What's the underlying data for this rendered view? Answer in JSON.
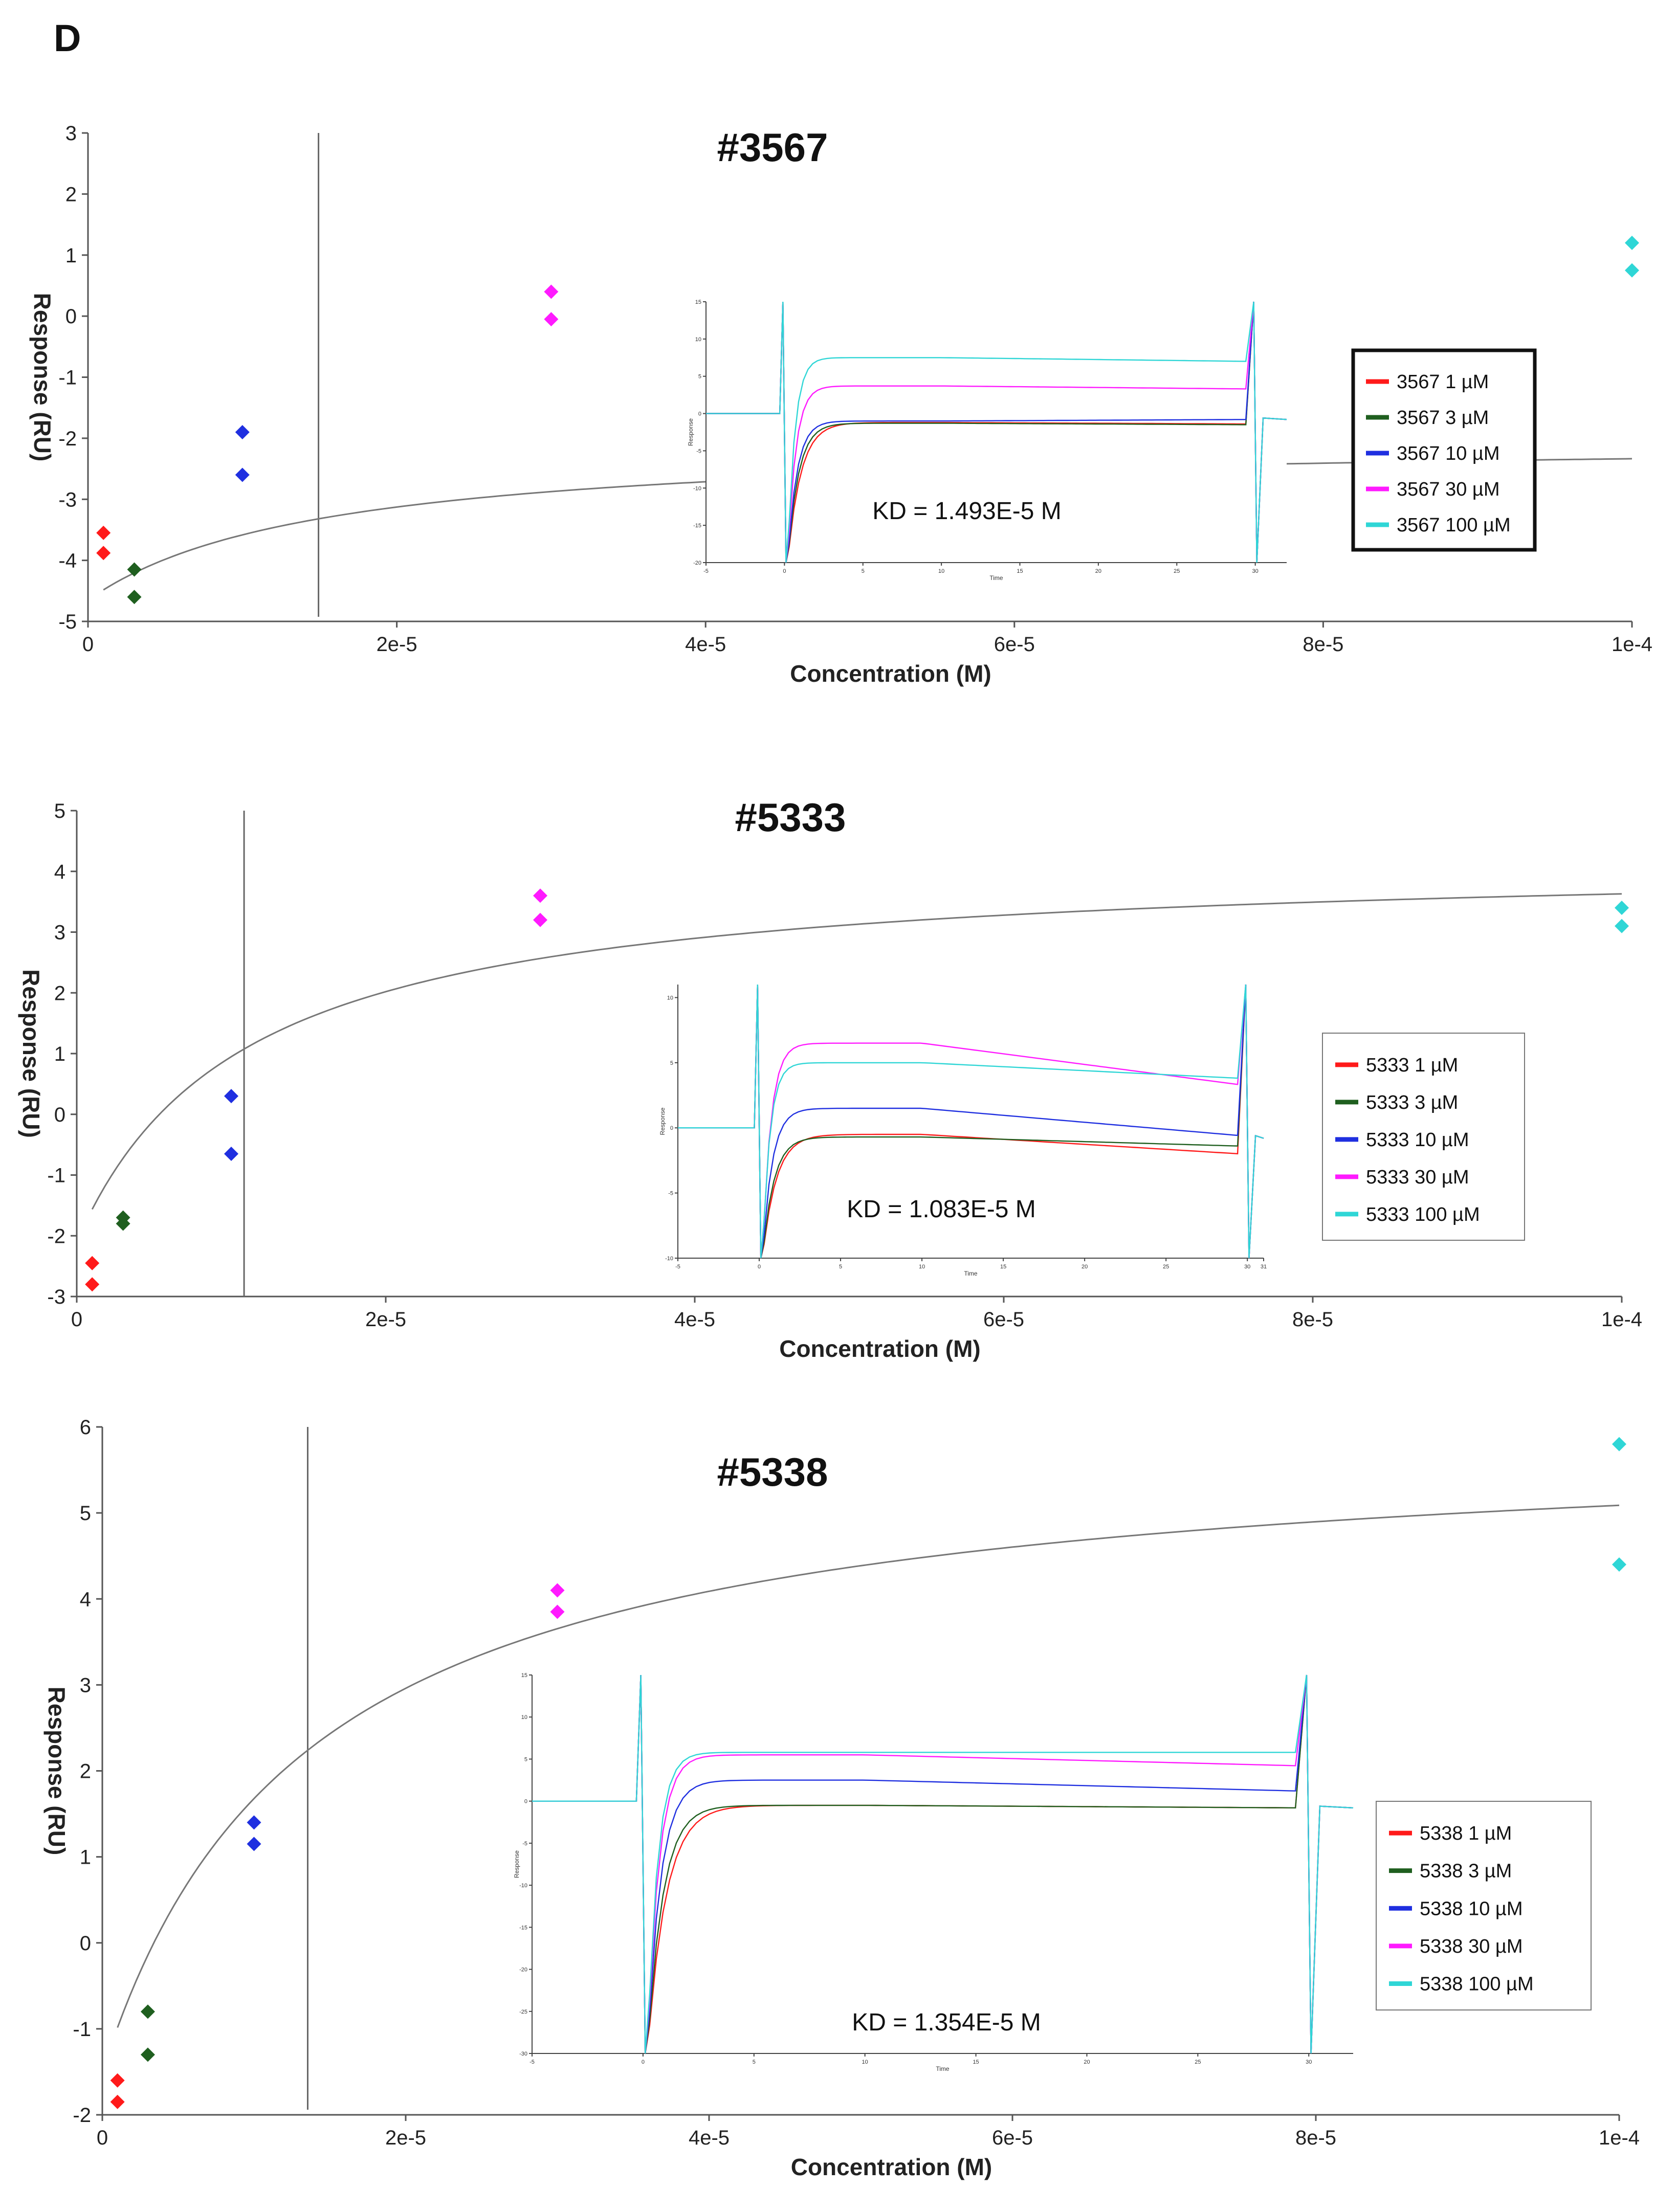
{
  "panel_label": "D",
  "chart_data": [
    {
      "type": "scatter",
      "title": "#3567",
      "xlabel": "Concentration  (M)",
      "ylabel": "Response  (RU)",
      "xlim": [
        0,
        0.0001
      ],
      "ylim": [
        -5,
        3
      ],
      "xticks": [
        0,
        2e-05,
        4e-05,
        6e-05,
        8e-05,
        0.0001
      ],
      "xtick_labels": [
        "0",
        "2e-5",
        "4e-5",
        "6e-5",
        "8e-5",
        "1e-4"
      ],
      "yticks": [
        -5,
        -4,
        -3,
        -2,
        -1,
        0,
        1,
        2,
        3
      ],
      "ytick_labels": [
        "-5",
        "-4",
        "-3",
        "-2",
        "-1",
        "0",
        "1",
        "2",
        "3"
      ],
      "fit": {
        "rmax": 2.66,
        "kd": 1.493e-05,
        "offset": -4.65
      },
      "kd_line_x": 1.493e-05,
      "series": [
        {
          "name": "3567  1 µM",
          "color": "#ff1a1a",
          "x": [
            1e-06,
            1e-06
          ],
          "y": [
            -3.55,
            -3.88
          ]
        },
        {
          "name": "3567  3 µM",
          "color": "#1f5f1f",
          "x": [
            3e-06,
            3e-06
          ],
          "y": [
            -4.15,
            -4.6
          ]
        },
        {
          "name": "3567  10 µM",
          "color": "#1f2fe0",
          "x": [
            1e-05,
            1e-05
          ],
          "y": [
            -1.9,
            -2.6
          ]
        },
        {
          "name": "3567  30 µM",
          "color": "#ff1aff",
          "x": [
            3e-05,
            3e-05
          ],
          "y": [
            0.4,
            -0.05
          ]
        },
        {
          "name": "3567  100 µM",
          "color": "#2fd6d6",
          "x": [
            0.0001,
            0.0001
          ],
          "y": [
            1.2,
            0.75
          ]
        }
      ],
      "legend": {
        "items": [
          "3567  1 µM",
          "3567  3 µM",
          "3567  10 µM",
          "3567  30 µM",
          "3567  100 µM"
        ]
      },
      "inset": {
        "kd_text": "KD = 1.493E-5 M",
        "ylabel": "Response",
        "xlabel": "Time",
        "xlim": [
          -5,
          32
        ],
        "ylim": [
          -20,
          15
        ],
        "xticks": [
          -5,
          0,
          5,
          10,
          15,
          20,
          25,
          30
        ],
        "xtick_labels": [
          "-5",
          "0",
          "5",
          "10",
          "15",
          "20",
          "25",
          "30"
        ],
        "yticks": [
          -20,
          -15,
          -10,
          -5,
          0,
          5,
          10,
          15
        ],
        "ytick_labels": [
          "-20",
          "-15",
          "-10",
          "-5",
          "0",
          "5",
          "10",
          "15"
        ],
        "plateaus": [
          -1.2,
          -1.3,
          -1.0,
          3.7,
          7.5
        ],
        "end_values": [
          -1.4,
          -1.5,
          -0.8,
          3.3,
          7.0
        ]
      }
    },
    {
      "type": "scatter",
      "title": "#5333",
      "xlabel": "Concentration  (M)",
      "ylabel": "Response  (RU)",
      "xlim": [
        0,
        0.0001
      ],
      "ylim": [
        -3,
        5
      ],
      "xticks": [
        0,
        2e-05,
        4e-05,
        6e-05,
        8e-05,
        0.0001
      ],
      "xtick_labels": [
        "0",
        "2e-5",
        "4e-5",
        "6e-5",
        "8e-5",
        "1e-4"
      ],
      "yticks": [
        -3,
        -2,
        -1,
        0,
        1,
        2,
        3,
        4,
        5
      ],
      "ytick_labels": [
        "-3",
        "-2",
        "-1",
        "0",
        "1",
        "2",
        "3",
        "4",
        "5"
      ],
      "fit": {
        "rmax": 6.35,
        "kd": 1.083e-05,
        "offset": -2.1
      },
      "kd_line_x": 1.083e-05,
      "series": [
        {
          "name": "5333  1 µM",
          "color": "#ff1a1a",
          "x": [
            1e-06,
            1e-06
          ],
          "y": [
            -2.45,
            -2.8
          ]
        },
        {
          "name": "5333  3 µM",
          "color": "#1f5f1f",
          "x": [
            3e-06,
            3e-06
          ],
          "y": [
            -1.7,
            -1.8
          ]
        },
        {
          "name": "5333  10 µM",
          "color": "#1f2fe0",
          "x": [
            1e-05,
            1e-05
          ],
          "y": [
            0.3,
            -0.65
          ]
        },
        {
          "name": "5333  30 µM",
          "color": "#ff1aff",
          "x": [
            3e-05,
            3e-05
          ],
          "y": [
            3.6,
            3.2
          ]
        },
        {
          "name": "5333  100 µM",
          "color": "#2fd6d6",
          "x": [
            0.0001,
            0.0001
          ],
          "y": [
            3.4,
            3.1
          ]
        }
      ],
      "legend": {
        "items": [
          "5333  1 µM",
          "5333  3 µM",
          "5333  10 µM",
          "5333  30 µM",
          "5333  100 µM"
        ]
      },
      "inset": {
        "kd_text": "KD = 1.083E-5 M",
        "ylabel": "Response",
        "xlabel": "Time",
        "xlim": [
          -5,
          31
        ],
        "ylim": [
          -10,
          11
        ],
        "xticks": [
          -5,
          0,
          5,
          10,
          15,
          20,
          25,
          30,
          31
        ],
        "xtick_labels": [
          "-5",
          "0",
          "5",
          "10",
          "15",
          "20",
          "25",
          "30",
          "31"
        ],
        "yticks": [
          -10,
          -5,
          0,
          5,
          10
        ],
        "ytick_labels": [
          "-10",
          "-5",
          "0",
          "5",
          "10"
        ],
        "plateaus": [
          -0.5,
          -0.7,
          1.5,
          6.5,
          5.0
        ],
        "end_values": [
          -2.0,
          -1.4,
          -0.6,
          3.3,
          3.8
        ]
      }
    },
    {
      "type": "scatter",
      "title": "#5338",
      "xlabel": "Concentration  (M)",
      "ylabel": "Response  (RU)",
      "xlim": [
        0,
        0.0001
      ],
      "ylim": [
        -2,
        6
      ],
      "xticks": [
        0,
        2e-05,
        4e-05,
        6e-05,
        8e-05,
        0.0001
      ],
      "xtick_labels": [
        "0",
        "2e-5",
        "4e-5",
        "6e-5",
        "8e-5",
        "1e-4"
      ],
      "yticks": [
        -2,
        -1,
        0,
        1,
        2,
        3,
        4,
        5,
        6
      ],
      "ytick_labels": [
        "-2",
        "-1",
        "0",
        "1",
        "2",
        "3",
        "4",
        "5",
        "6"
      ],
      "fit": {
        "rmax": 7.48,
        "kd": 1.354e-05,
        "offset": -1.5
      },
      "kd_line_x": 1.354e-05,
      "series": [
        {
          "name": "5338  1 µM",
          "color": "#ff1a1a",
          "x": [
            1e-06,
            1e-06
          ],
          "y": [
            -1.6,
            -1.85
          ]
        },
        {
          "name": "5338  3 µM",
          "color": "#1f5f1f",
          "x": [
            3e-06,
            3e-06
          ],
          "y": [
            -0.8,
            -1.3
          ]
        },
        {
          "name": "5338  10 µM",
          "color": "#1f2fe0",
          "x": [
            1e-05,
            1e-05
          ],
          "y": [
            1.4,
            1.15
          ]
        },
        {
          "name": "5338  30 µM",
          "color": "#ff1aff",
          "x": [
            3e-05,
            3e-05
          ],
          "y": [
            4.1,
            3.85
          ]
        },
        {
          "name": "5338  100 µM",
          "color": "#2fd6d6",
          "x": [
            0.0001,
            0.0001
          ],
          "y": [
            5.8,
            4.4
          ]
        }
      ],
      "legend": {
        "items": [
          "5338  1 µM",
          "5338  3 µM",
          "5338  10 µM",
          "5338  30 µM",
          "5338  100 µM"
        ]
      },
      "inset": {
        "kd_text": "KD = 1.354E-5 M",
        "ylabel": "Response",
        "xlabel": "Time",
        "xlim": [
          -5,
          32
        ],
        "ylim": [
          -30,
          15
        ],
        "xticks": [
          -5,
          0,
          5,
          10,
          15,
          20,
          25,
          30
        ],
        "xtick_labels": [
          "-5",
          "0",
          "5",
          "10",
          "15",
          "20",
          "25",
          "30"
        ],
        "yticks": [
          -30,
          -25,
          -20,
          -15,
          -10,
          -5,
          0,
          5,
          10,
          15
        ],
        "ytick_labels": [
          "-30",
          "-25",
          "-20",
          "-15",
          "-10",
          "-5",
          "0",
          "5",
          "10",
          "15"
        ],
        "plateaus": [
          -0.5,
          -0.5,
          2.5,
          5.5,
          5.8
        ],
        "end_values": [
          -0.8,
          -0.8,
          1.2,
          4.2,
          5.8
        ]
      }
    }
  ]
}
